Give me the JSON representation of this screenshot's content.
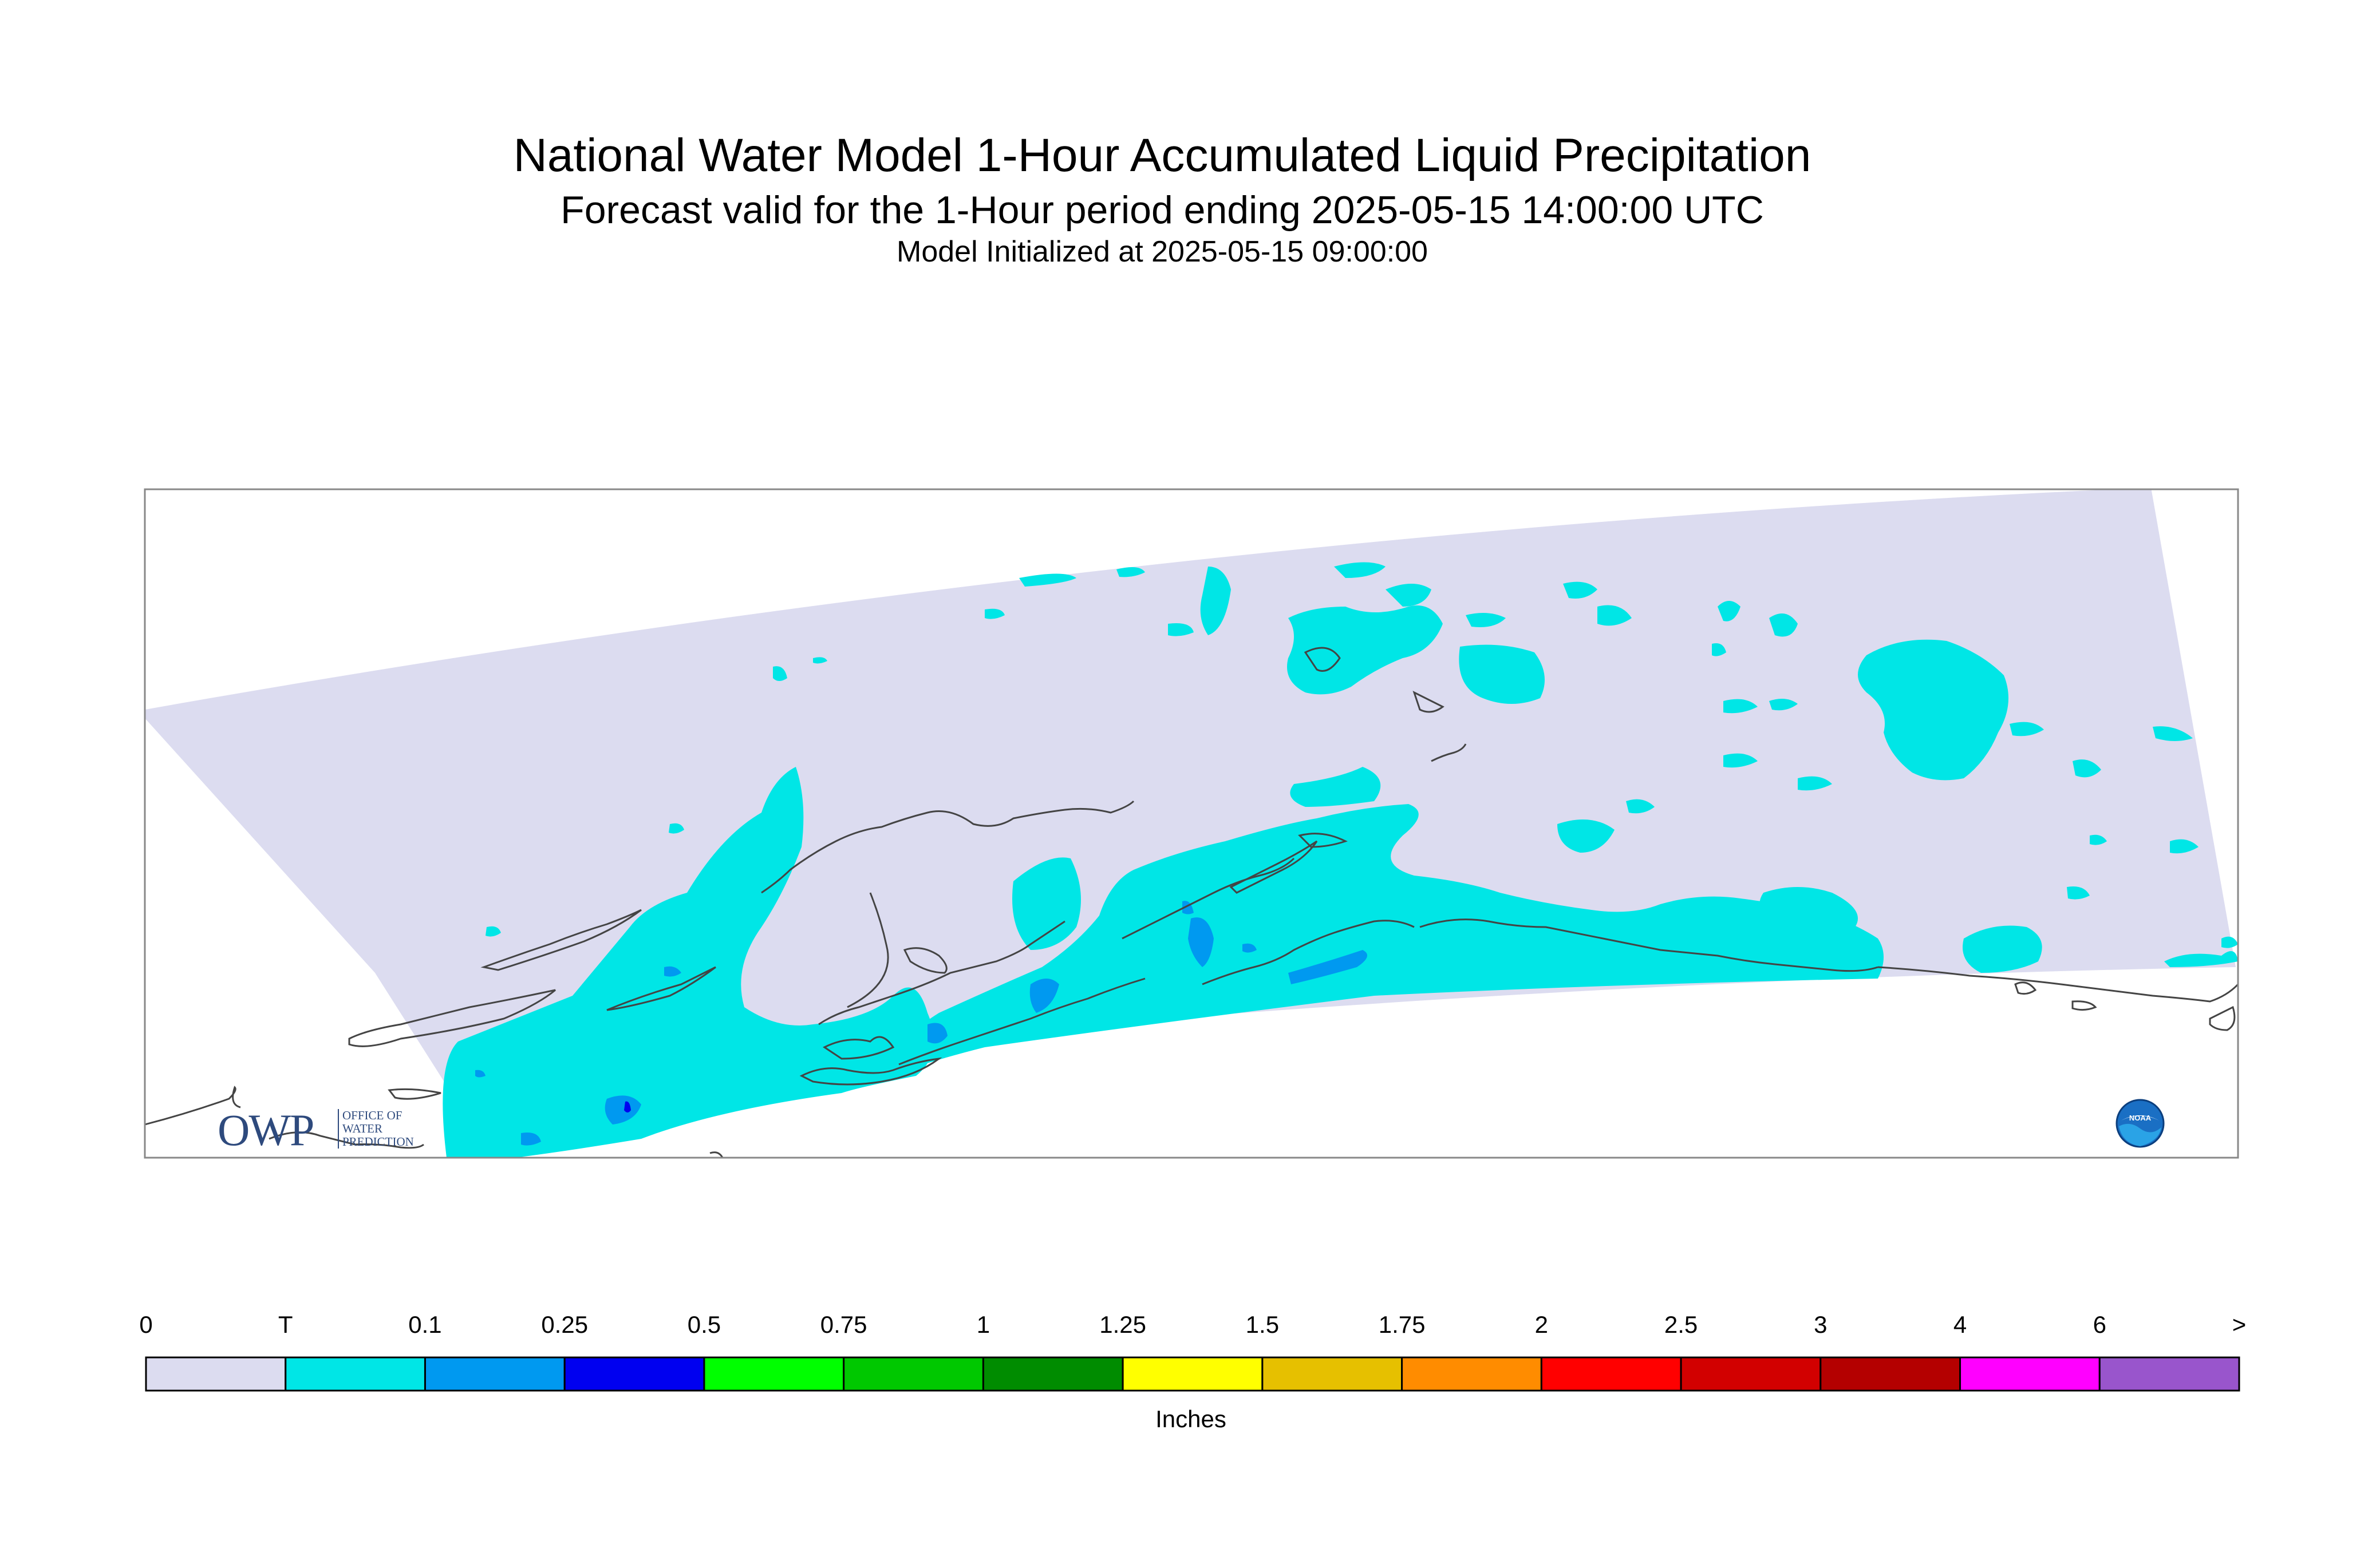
{
  "title": "National Water Model 1-Hour Accumulated Liquid Precipitation",
  "subtitle": "Forecast valid for the 1-Hour period ending 2025-05-15 14:00:00 UTC",
  "init_line": "Model Initialized at 2025-05-15 09:00:00",
  "logos": {
    "owp_letters": "OWP",
    "owp_text": [
      "OFFICE OF",
      "WATER",
      "PREDICTION"
    ],
    "noaa_text": "NOAA"
  },
  "colorbar": {
    "units": "Inches",
    "labels": [
      "0",
      "T",
      "0.1",
      "0.25",
      "0.5",
      "0.75",
      "1",
      "1.25",
      "1.5",
      "1.75",
      "2",
      "2.5",
      "3",
      "4",
      "6",
      ">"
    ],
    "colors": [
      "#dcdcf0",
      "#00e6e6",
      "#0099f0",
      "#0000f0",
      "#00ff00",
      "#00c800",
      "#008c00",
      "#ffff00",
      "#e6c000",
      "#ff8c00",
      "#ff0000",
      "#d20000",
      "#b40000",
      "#ff00ff",
      "#9955cc"
    ]
  },
  "map_colors": {
    "no_precip": "#dcdcf0",
    "trace": "#00e6e6",
    "light": "#0099f0",
    "moderate": "#0000f0",
    "coastline": "#444444",
    "frame": "#888888"
  }
}
